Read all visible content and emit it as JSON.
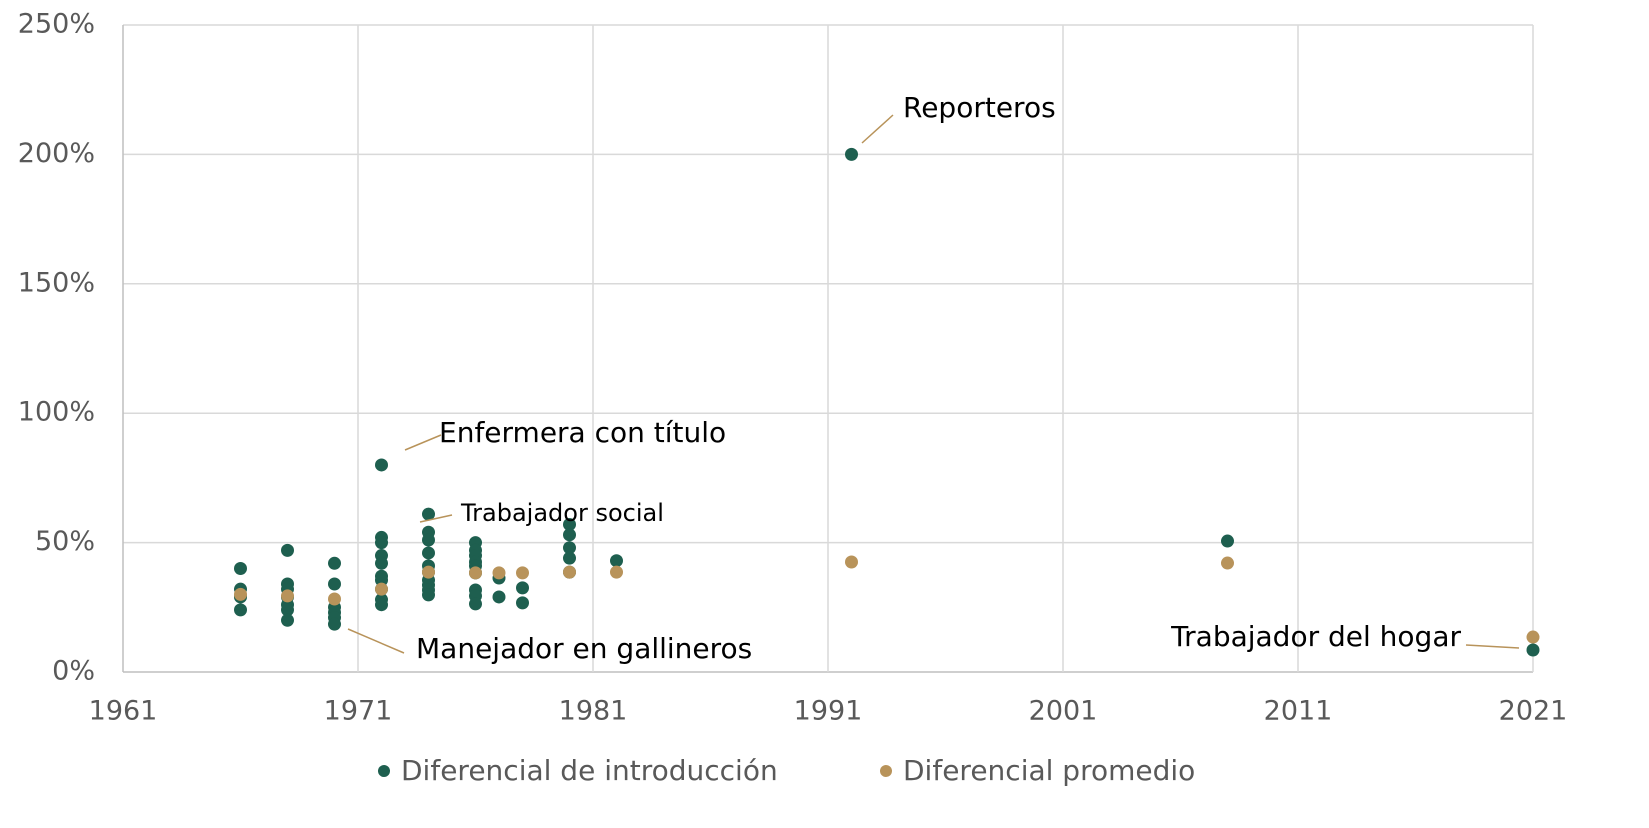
{
  "chart_data": {
    "type": "scatter",
    "xlim": [
      1961,
      2021
    ],
    "xticks": [
      1961,
      1971,
      1981,
      1991,
      2001,
      2011,
      2021
    ],
    "ylim": [
      0,
      250
    ],
    "yticks": [
      {
        "value": 0,
        "label": "0%"
      },
      {
        "value": 50,
        "label": "50%"
      },
      {
        "value": 100,
        "label": "100%"
      },
      {
        "value": 150,
        "label": "150%"
      },
      {
        "value": 200,
        "label": "200%"
      },
      {
        "value": 250,
        "label": "250%"
      }
    ],
    "grid": true,
    "legend": "bottom",
    "series": [
      {
        "name": "Diferencial de introducción",
        "color": "#1e5f4f",
        "x": [
          1966,
          1966,
          1966,
          1966,
          1968,
          1968,
          1968,
          1968,
          1968,
          1968,
          1968,
          1970,
          1970,
          1970,
          1970,
          1970,
          1970,
          1972,
          1972,
          1972,
          1972,
          1972,
          1972,
          1972,
          1972,
          1972,
          1972,
          1974,
          1974,
          1974,
          1974,
          1974,
          1974,
          1974,
          1974,
          1974,
          1974,
          1976,
          1976,
          1976,
          1976,
          1976,
          1976,
          1976,
          1976,
          1976,
          1977,
          1977,
          1978,
          1978,
          1980,
          1980,
          1980,
          1980,
          1980,
          1982,
          1992,
          2008,
          2021
        ],
        "values": [
          40,
          32,
          29,
          24,
          47,
          34,
          32,
          29,
          26,
          24,
          20,
          42,
          34,
          25,
          23,
          21,
          18.5,
          80,
          52,
          50,
          45,
          42,
          37,
          35.5,
          32,
          28,
          26,
          61,
          54,
          51,
          46,
          41,
          38.6,
          35.5,
          33.6,
          31.7,
          29.8,
          50,
          47,
          45,
          42.5,
          41,
          38.3,
          31.7,
          29.4,
          26.3,
          36.3,
          29,
          32.5,
          26.7,
          57,
          53,
          48,
          44,
          38.6,
          43,
          200,
          50.6,
          8.5
        ]
      },
      {
        "name": "Diferencial promedio",
        "color": "#b8935a",
        "x": [
          1966,
          1968,
          1970,
          1972,
          1974,
          1976,
          1977,
          1978,
          1980,
          1982,
          1992,
          2008,
          2021
        ],
        "values": [
          30,
          29.4,
          28.2,
          32,
          38.6,
          38.3,
          38.3,
          38.3,
          38.6,
          38.6,
          42.5,
          42.1,
          13.5
        ]
      }
    ],
    "annotations": [
      "Reporteros",
      "Enfermera con título",
      "Trabajador social",
      "Manejador en gallineros",
      "Trabajador del hogar"
    ]
  }
}
